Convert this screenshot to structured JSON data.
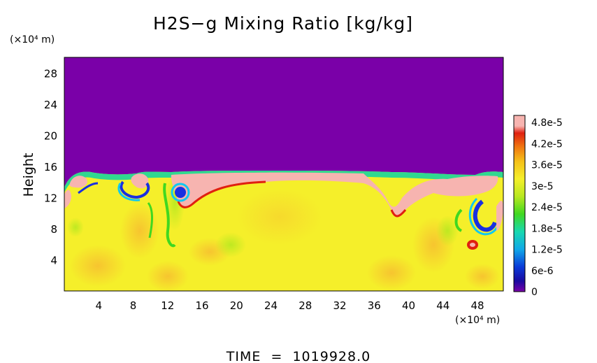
{
  "chart_data": {
    "type": "heatmap",
    "title": "H2S−g Mixing Ratio [kg/kg]",
    "xlabel": "",
    "ylabel": "Height",
    "x_unit": "(×10⁴ m)",
    "y_unit": "(×10⁴ m)",
    "xlim": [
      0,
      51
    ],
    "ylim": [
      0,
      30
    ],
    "x_ticks": [
      "4",
      "8",
      "12",
      "16",
      "20",
      "24",
      "28",
      "32",
      "36",
      "40",
      "44",
      "48"
    ],
    "y_ticks": [
      "4",
      "8",
      "12",
      "16",
      "20",
      "24",
      "28"
    ],
    "x_tick_values": [
      4,
      8,
      12,
      16,
      20,
      24,
      28,
      32,
      36,
      40,
      44,
      48
    ],
    "y_tick_values": [
      4,
      8,
      12,
      16,
      20,
      24,
      28
    ],
    "colorbar": {
      "labels": [
        "4.8e-5",
        "4.2e-5",
        "3.6e-5",
        "3e-5",
        "2.4e-5",
        "1.8e-5",
        "1.2e-5",
        "6e-6",
        "0"
      ],
      "values": [
        4.8e-05,
        4.2e-05,
        3.6e-05,
        3e-05,
        2.4e-05,
        1.8e-05,
        1.2e-05,
        6e-06,
        0
      ],
      "min": 0,
      "max": 5e-05
    },
    "footer": "TIME  =  1019928.0"
  },
  "colors": {
    "low": "#7a00a8",
    "high": "#f7b4b0",
    "mid": "#f5ef2a"
  }
}
